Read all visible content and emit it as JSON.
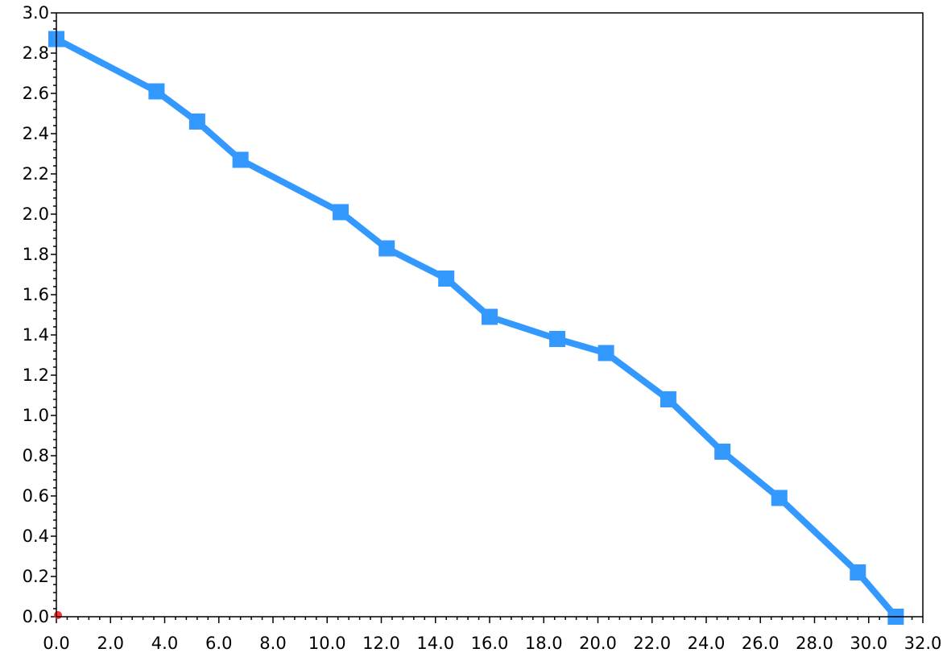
{
  "chart_data": {
    "type": "line",
    "title": "",
    "xlabel": "",
    "ylabel": "",
    "xlim": [
      0,
      32
    ],
    "ylim": [
      0,
      3
    ],
    "x_major_step": 2,
    "y_major_step": 0.2,
    "x_minor_per_major": 4,
    "y_minor_per_major": 4,
    "tick_format_decimals": 1,
    "grid": false,
    "legend": "none",
    "series": [
      {
        "color": "#3399ff",
        "marker": "square",
        "points": [
          {
            "x": 0.0,
            "y": 2.87
          },
          {
            "x": 3.7,
            "y": 2.61
          },
          {
            "x": 5.2,
            "y": 2.46
          },
          {
            "x": 6.8,
            "y": 2.27
          },
          {
            "x": 10.5,
            "y": 2.01
          },
          {
            "x": 12.2,
            "y": 1.83
          },
          {
            "x": 14.4,
            "y": 1.68
          },
          {
            "x": 16.0,
            "y": 1.49
          },
          {
            "x": 18.5,
            "y": 1.38
          },
          {
            "x": 20.3,
            "y": 1.31
          },
          {
            "x": 22.6,
            "y": 1.08
          },
          {
            "x": 24.6,
            "y": 0.82
          },
          {
            "x": 26.7,
            "y": 0.59
          },
          {
            "x": 29.6,
            "y": 0.22
          },
          {
            "x": 31.0,
            "y": 0.0
          }
        ]
      }
    ],
    "origin_marker": {
      "x": 0,
      "y": 0,
      "color": "#ff3333"
    }
  }
}
